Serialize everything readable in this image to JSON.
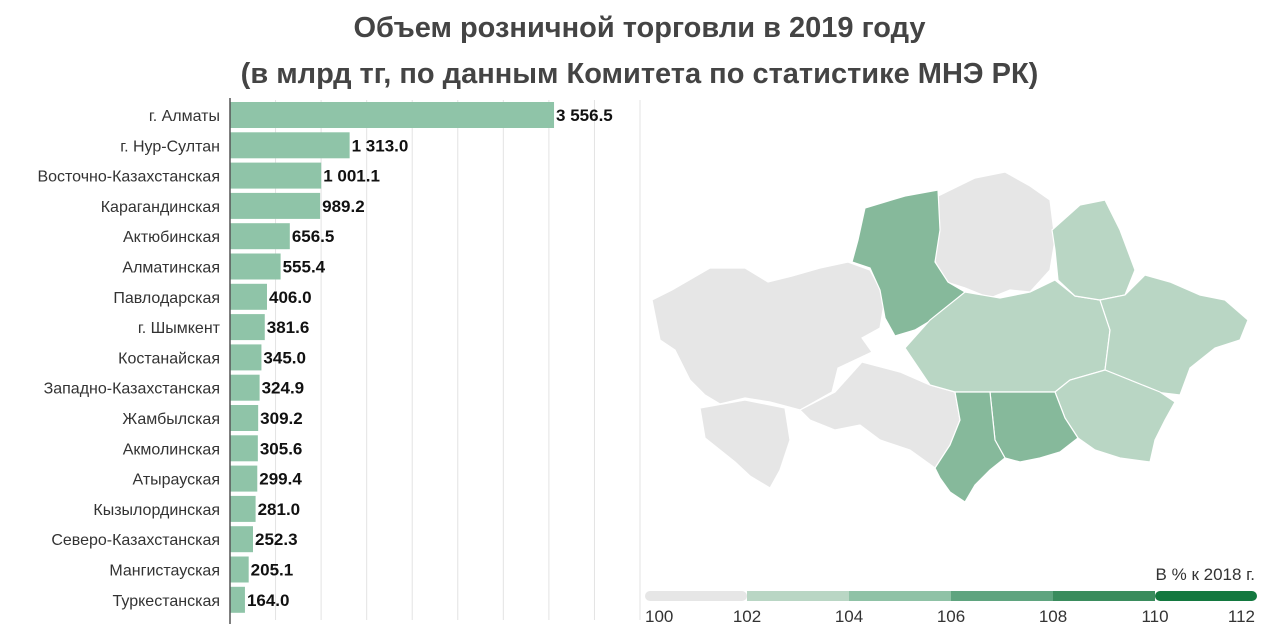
{
  "chart_data": {
    "type": "bar",
    "orientation": "horizontal",
    "title": "Объем розничной торговли в 2019 году",
    "subtitle": "(в млрд тг, по данным Комитета по статистике МНЭ РК)",
    "categories": [
      "г. Алматы",
      "г. Нур-Султан",
      "Восточно-Казахстанская",
      "Карагандинская",
      "Актюбинская",
      "Алматинская",
      "Павлодарская",
      "г. Шымкент",
      "Костанайская",
      "Западно-Казахстанская",
      "Жамбылская",
      "Акмолинская",
      "Атырауская",
      "Кызылординская",
      "Северо-Казахстанская",
      "Мангистауская",
      "Туркестанская"
    ],
    "values": [
      3556.5,
      1313.0,
      1001.1,
      989.2,
      656.5,
      555.4,
      406.0,
      381.6,
      345.0,
      324.9,
      309.2,
      305.6,
      299.4,
      281.0,
      252.3,
      205.1,
      164.0
    ],
    "value_labels": [
      "3 556.5",
      "1 313.0",
      "1 001.1",
      "989.2",
      "656.5",
      "555.4",
      "406.0",
      "381.6",
      "345.0",
      "324.9",
      "309.2",
      "305.6",
      "299.4",
      "281.0",
      "252.3",
      "205.1",
      "164.0"
    ],
    "bar_color": "#8fc4a8",
    "grid": true,
    "xlim": [
      0,
      4500
    ]
  },
  "legend": {
    "title": "В % к 2018 г.",
    "ticks": [
      "100",
      "102",
      "104",
      "106",
      "108",
      "110",
      "112"
    ],
    "colors": [
      "#e6e6e6",
      "#b9d6c4",
      "#8fc2a6",
      "#5fa47f",
      "#3a8c5d",
      "#13783f"
    ]
  }
}
